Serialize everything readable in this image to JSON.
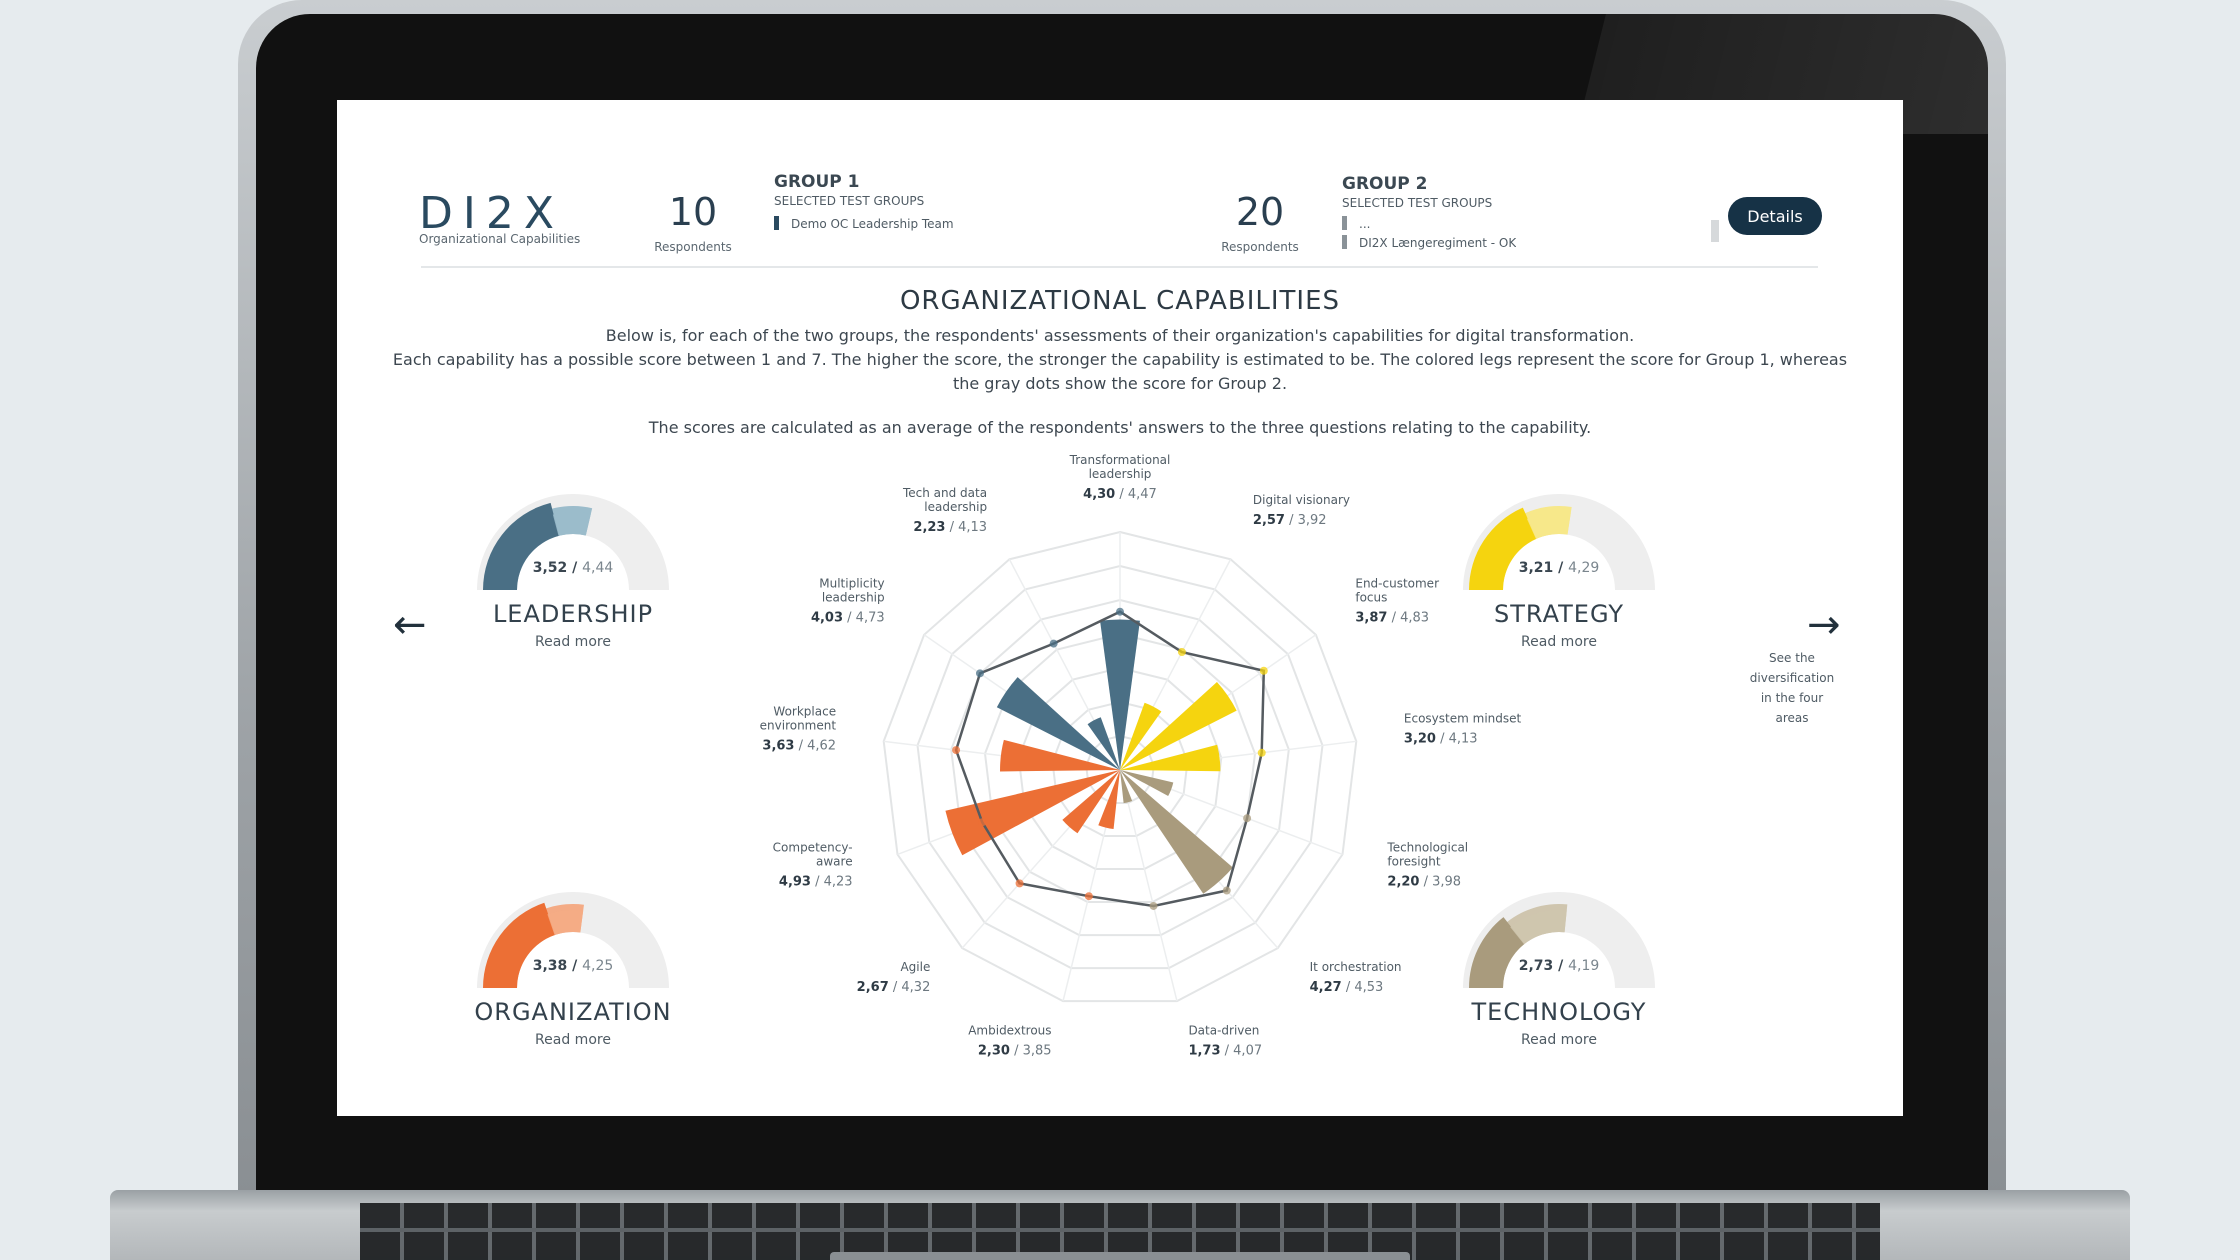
{
  "brand": {
    "logo": "DI2X",
    "subtitle": "Organizational Capabilities"
  },
  "group1": {
    "respondents": "10",
    "respondents_label": "Respondents",
    "title": "GROUP 1",
    "selected_label": "SELECTED TEST GROUPS",
    "items": [
      "Demo OC Leadership Team"
    ]
  },
  "group2": {
    "respondents": "20",
    "respondents_label": "Respondents",
    "title": "GROUP 2",
    "selected_label": "SELECTED TEST GROUPS",
    "items": [
      "...",
      "DI2X Længeregiment - OK"
    ]
  },
  "details_button": "Details",
  "page": {
    "title": "ORGANIZATIONAL CAPABILITIES",
    "desc1": "Below is, for each of the two groups, the respondents' assessments of their organization's capabilities for digital transformation.",
    "desc2": "Each capability has a possible score between 1 and 7. The higher the score, the stronger the capability is estimated to be. The colored legs represent the score for Group 1, whereas",
    "desc3": "the gray dots show the score for Group 2.",
    "desc4": "The scores are calculated as an average of the respondents' answers to the three questions relating to the capability."
  },
  "areas": {
    "leadership": {
      "name": "LEADERSHIP",
      "read_more": "Read more",
      "g1": "3,52",
      "g2": "4,44",
      "g1_value": 3.52,
      "g2_value": 4.44,
      "color_dark": "#4a6f85",
      "color_light": "#9bbccb"
    },
    "strategy": {
      "name": "STRATEGY",
      "read_more": "Read more",
      "g1": "3,21",
      "g2": "4,29",
      "g1_value": 3.21,
      "g2_value": 4.29,
      "color_dark": "#f5d40f",
      "color_light": "#f7e88a"
    },
    "organization": {
      "name": "ORGANIZATION",
      "read_more": "Read more",
      "g1": "3,38",
      "g2": "4,25",
      "g1_value": 3.38,
      "g2_value": 4.25,
      "color_dark": "#ec6f35",
      "color_light": "#f4ab85"
    },
    "technology": {
      "name": "TECHNOLOGY",
      "read_more": "Read more",
      "g1": "2,73",
      "g2": "4,19",
      "g1_value": 2.73,
      "g2_value": 4.19,
      "color_dark": "#a99b7d",
      "color_light": "#cfc5ae"
    }
  },
  "nav": {
    "prev_icon": "arrow-left-icon",
    "next_icon": "arrow-right-icon",
    "side_note": [
      "See the",
      "diversification",
      "in the four",
      "areas"
    ]
  },
  "chart_data": {
    "type": "radar-bar",
    "scale": [
      1,
      7
    ],
    "capabilities": [
      {
        "name": [
          "Transformational",
          "leadership"
        ],
        "g1": "4,30",
        "g2": "4,47",
        "g1_value": 4.3,
        "g2_value": 4.47,
        "area": "leadership"
      },
      {
        "name": [
          "Digital visionary"
        ],
        "g1": "2,57",
        "g2": "3,92",
        "g1_value": 2.57,
        "g2_value": 3.92,
        "area": "strategy"
      },
      {
        "name": [
          "End-customer",
          "focus"
        ],
        "g1": "3,87",
        "g2": "4,83",
        "g1_value": 3.87,
        "g2_value": 4.83,
        "area": "strategy"
      },
      {
        "name": [
          "Ecosystem mindset"
        ],
        "g1": "3,20",
        "g2": "4,13",
        "g1_value": 3.2,
        "g2_value": 4.13,
        "area": "strategy"
      },
      {
        "name": [
          "Technological",
          "foresight"
        ],
        "g1": "2,20",
        "g2": "3,98",
        "g1_value": 2.2,
        "g2_value": 3.98,
        "area": "technology"
      },
      {
        "name": [
          "It orchestration"
        ],
        "g1": "4,27",
        "g2": "4,53",
        "g1_value": 4.27,
        "g2_value": 4.53,
        "area": "technology"
      },
      {
        "name": [
          "Data-driven"
        ],
        "g1": "1,73",
        "g2": "4,07",
        "g1_value": 1.73,
        "g2_value": 4.07,
        "area": "technology"
      },
      {
        "name": [
          "Ambidextrous"
        ],
        "g1": "2,30",
        "g2": "3,85",
        "g1_value": 2.3,
        "g2_value": 3.85,
        "area": "organization"
      },
      {
        "name": [
          "Agile"
        ],
        "g1": "2,67",
        "g2": "4,32",
        "g1_value": 2.67,
        "g2_value": 4.32,
        "area": "organization"
      },
      {
        "name": [
          "Competency-",
          "aware"
        ],
        "g1": "4,93",
        "g2": "4,23",
        "g1_value": 4.93,
        "g2_value": 4.23,
        "area": "organization"
      },
      {
        "name": [
          "Workplace",
          "environment"
        ],
        "g1": "3,63",
        "g2": "4,62",
        "g1_value": 3.63,
        "g2_value": 4.62,
        "area": "organization"
      },
      {
        "name": [
          "Multiplicity",
          "leadership"
        ],
        "g1": "4,03",
        "g2": "4,73",
        "g1_value": 4.03,
        "g2_value": 4.73,
        "area": "leadership"
      },
      {
        "name": [
          "Tech and data",
          "leadership"
        ],
        "g1": "2,23",
        "g2": "4,13",
        "g1_value": 2.23,
        "g2_value": 4.13,
        "area": "leadership"
      }
    ],
    "colors": {
      "leadership": "#4a6f85",
      "strategy": "#f5d40f",
      "technology": "#a99b7d",
      "organization": "#ec6f35",
      "group2_line": "#555b60"
    }
  }
}
